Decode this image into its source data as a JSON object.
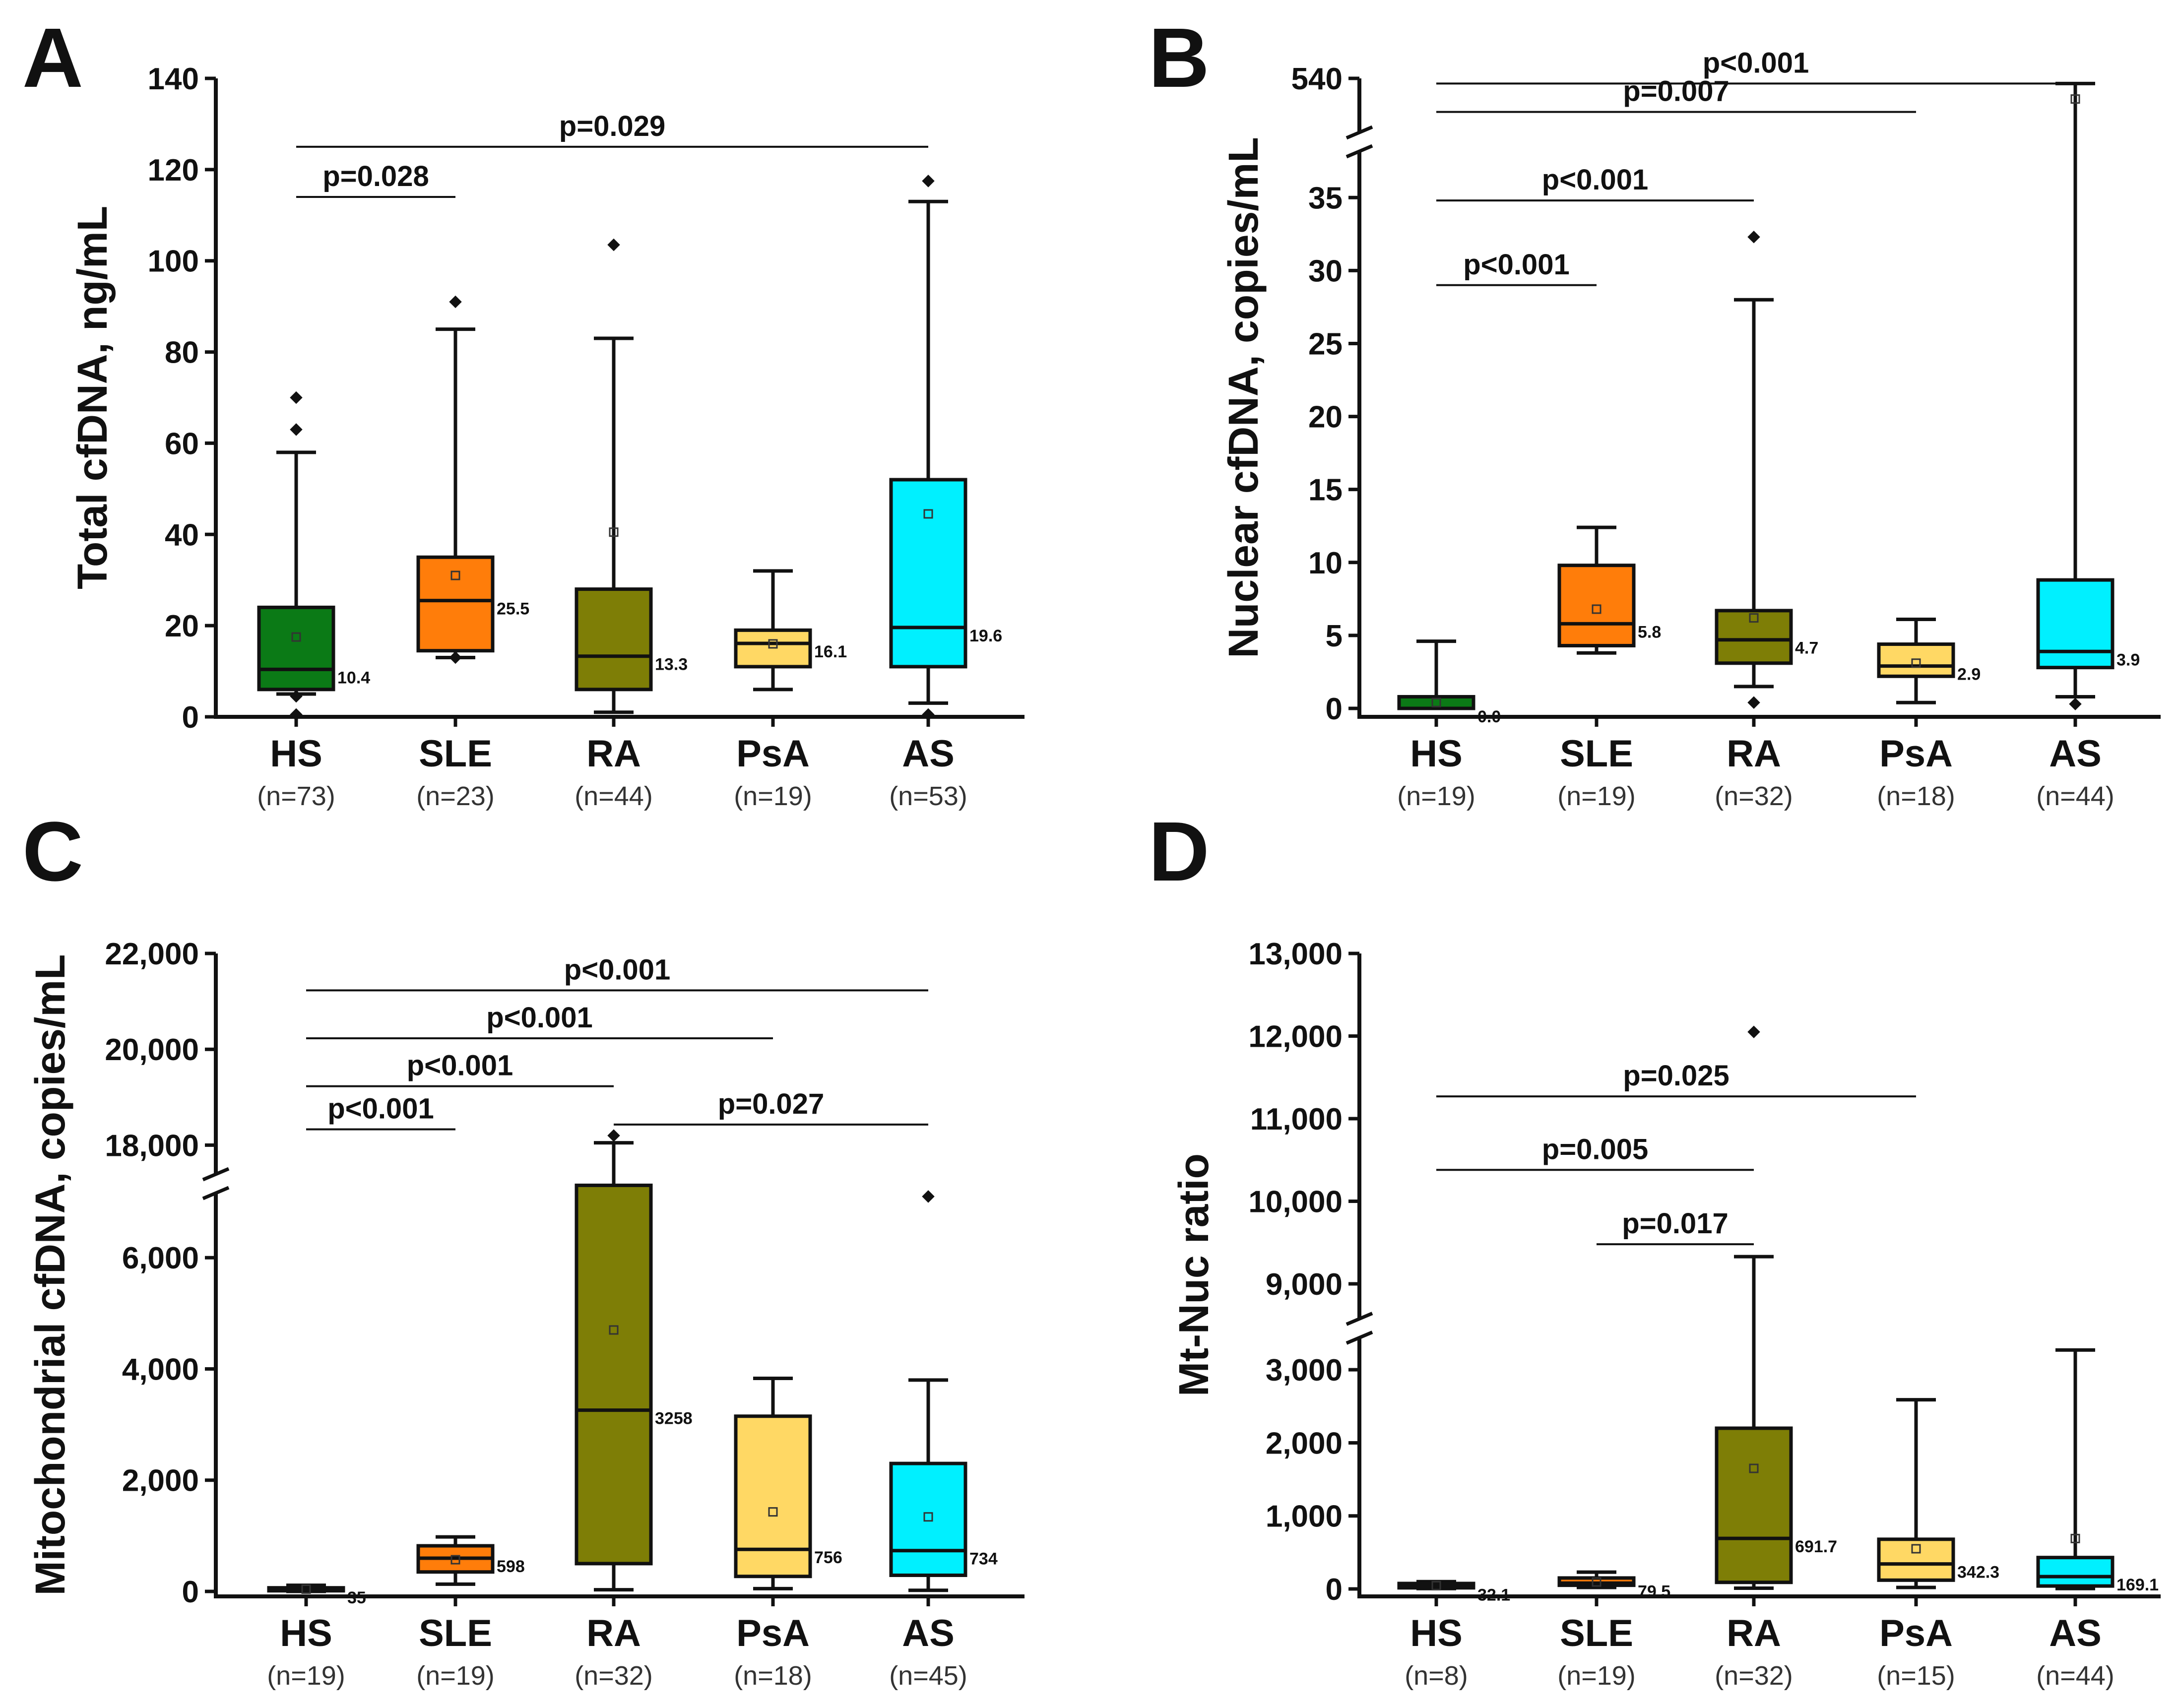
{
  "colors": {
    "HS": "#0b7a16",
    "SLE": "#ff7d0a",
    "RA": "#7e7e06",
    "PsA": "#ffd864",
    "AS": "#00f0ff"
  },
  "chart_data": [
    {
      "panel": "A",
      "type": "box",
      "ylabel": "Total cfDNA, ng/mL",
      "ylim": [
        0,
        140
      ],
      "yticks": [
        0,
        20,
        40,
        60,
        80,
        100,
        120,
        140
      ],
      "ytick_labels": [
        "0",
        "20",
        "40",
        "60",
        "80",
        "100",
        "120",
        "140"
      ],
      "categories": [
        "HS",
        "SLE",
        "RA",
        "PsA",
        "AS"
      ],
      "n_labels": [
        "(n=73)",
        "(n=23)",
        "(n=44)",
        "(n=19)",
        "(n=53)"
      ],
      "series": [
        {
          "name": "HS",
          "q1": 6,
          "median": 10.4,
          "q3": 24,
          "whisker_low": 5,
          "whisker_high": 58,
          "mean": 17.5,
          "outliers": [
            70,
            63,
            0.5,
            4.5
          ],
          "median_label": "10.4"
        },
        {
          "name": "SLE",
          "q1": 14.5,
          "median": 25.5,
          "q3": 35,
          "whisker_low": 13,
          "whisker_high": 85,
          "mean": 31,
          "outliers": [
            91,
            13
          ],
          "median_label": "25.5"
        },
        {
          "name": "RA",
          "q1": 6,
          "median": 13.3,
          "q3": 28,
          "whisker_low": 1,
          "whisker_high": 83,
          "mean": 40.5,
          "outliers": [
            103.5
          ],
          "median_label": "13.3"
        },
        {
          "name": "PsA",
          "q1": 11,
          "median": 16.1,
          "q3": 19,
          "whisker_low": 6,
          "whisker_high": 32,
          "mean": 16,
          "outliers": [],
          "median_label": "16.1"
        },
        {
          "name": "AS",
          "q1": 11,
          "median": 19.6,
          "q3": 52,
          "whisker_low": 3,
          "whisker_high": 113,
          "mean": 44.5,
          "outliers": [
            117.5,
            0.5
          ],
          "median_label": "19.6"
        }
      ],
      "brackets": [
        {
          "from": "HS",
          "to": "SLE",
          "y": 114,
          "label": "p=0.028"
        },
        {
          "from": "HS",
          "to": "AS",
          "y": 125,
          "label": "p=0.029"
        }
      ]
    },
    {
      "panel": "B",
      "type": "box",
      "ylabel": "Nuclear cfDNA, copies/mL",
      "ylim": [
        0,
        540
      ],
      "axis_break": [
        38,
        520
      ],
      "yticks": [
        0,
        5,
        10,
        15,
        20,
        25,
        30,
        35,
        540
      ],
      "ytick_labels": [
        "0",
        "5",
        "10",
        "15",
        "20",
        "25",
        "30",
        "35",
        "540"
      ],
      "categories": [
        "HS",
        "SLE",
        "RA",
        "PsA",
        "AS"
      ],
      "n_labels": [
        "(n=19)",
        "(n=19)",
        "(n=32)",
        "(n=18)",
        "(n=44)"
      ],
      "series": [
        {
          "name": "HS",
          "q1": 0,
          "median": 0.0,
          "q3": 0.8,
          "whisker_low": 0,
          "whisker_high": 4.6,
          "mean": 0.4,
          "outliers": [],
          "median_label": "0.0"
        },
        {
          "name": "SLE",
          "q1": 4.3,
          "median": 5.8,
          "q3": 9.8,
          "whisker_low": 3.8,
          "whisker_high": 12.4,
          "mean": 6.8,
          "outliers": [],
          "median_label": "5.8"
        },
        {
          "name": "RA",
          "q1": 3.1,
          "median": 4.7,
          "q3": 6.7,
          "whisker_low": 1.5,
          "whisker_high": 28,
          "mean": 6.2,
          "outliers": [
            32.3,
            0.4
          ],
          "median_label": "4.7"
        },
        {
          "name": "PsA",
          "q1": 2.2,
          "median": 2.9,
          "q3": 4.4,
          "whisker_low": 0.4,
          "whisker_high": 6.1,
          "mean": 3.1,
          "outliers": [],
          "median_label": "2.9"
        },
        {
          "name": "AS",
          "q1": 2.8,
          "median": 3.9,
          "q3": 8.8,
          "whisker_low": 0.8,
          "whisker_high": 538,
          "mean": 532,
          "outliers": [
            0.3
          ],
          "median_label": "3.9"
        }
      ],
      "brackets": [
        {
          "from": "HS",
          "to": "SLE",
          "y": 29,
          "label": "p<0.001"
        },
        {
          "from": "HS",
          "to": "RA",
          "y": 34.8,
          "label": "p<0.001"
        },
        {
          "from": "HS",
          "to": "PsA",
          "y": 527,
          "label": "p=0.007"
        },
        {
          "from": "HS",
          "to": "AS",
          "y": 538,
          "label": "p<0.001"
        }
      ]
    },
    {
      "panel": "C",
      "type": "box",
      "ylabel": "Mitochondrial cfDNA, copies/mL",
      "ylim": [
        0,
        22000
      ],
      "axis_break": [
        7500,
        17000
      ],
      "yticks": [
        0,
        2000,
        4000,
        6000,
        18000,
        20000,
        22000
      ],
      "ytick_labels": [
        "0",
        "2,000",
        "4,000",
        "6,000",
        "18,000",
        "20,000",
        "22,000"
      ],
      "categories": [
        "HS",
        "SLE",
        "RA",
        "PsA",
        "AS"
      ],
      "n_labels": [
        "(n=19)",
        "(n=19)",
        "(n=32)",
        "(n=18)",
        "(n=45)"
      ],
      "series": [
        {
          "name": "HS",
          "q1": 15,
          "median": 35,
          "q3": 65,
          "whisker_low": 0,
          "whisker_high": 110,
          "mean": 40,
          "outliers": [],
          "median_label": "35"
        },
        {
          "name": "SLE",
          "q1": 350,
          "median": 598,
          "q3": 820,
          "whisker_low": 130,
          "whisker_high": 980,
          "mean": 570,
          "outliers": [],
          "median_label": "598"
        },
        {
          "name": "RA",
          "q1": 500,
          "median": 3258,
          "q3": 7300,
          "whisker_low": 30,
          "whisker_high": 18050,
          "mean": 4700,
          "outliers": [
            18200
          ],
          "median_label": "3258"
        },
        {
          "name": "PsA",
          "q1": 270,
          "median": 756,
          "q3": 3150,
          "whisker_low": 50,
          "whisker_high": 3830,
          "mean": 1430,
          "outliers": [],
          "median_label": "756"
        },
        {
          "name": "AS",
          "q1": 290,
          "median": 734,
          "q3": 2300,
          "whisker_low": 20,
          "whisker_high": 3800,
          "mean": 1340,
          "outliers": [
            7100
          ],
          "median_label": "734"
        }
      ],
      "brackets": [
        {
          "from": "HS",
          "to": "SLE",
          "y": 18330,
          "label": "p<0.001"
        },
        {
          "from": "HS",
          "to": "RA",
          "y": 19230,
          "label": "p<0.001"
        },
        {
          "from": "HS",
          "to": "PsA",
          "y": 20230,
          "label": "p<0.001"
        },
        {
          "from": "HS",
          "to": "AS",
          "y": 21230,
          "label": "p<0.001"
        },
        {
          "from": "RA",
          "to": "AS",
          "y": 18430,
          "label": "p=0.027"
        }
      ]
    },
    {
      "panel": "D",
      "type": "box",
      "ylabel": "Mt-Nuc ratio",
      "ylim": [
        0,
        13000
      ],
      "axis_break": [
        3300,
        8700
      ],
      "yticks": [
        0,
        1000,
        2000,
        3000,
        9000,
        10000,
        11000,
        12000,
        13000
      ],
      "ytick_labels": [
        "0",
        "1,000",
        "2,000",
        "3,000",
        "9,000",
        "10,000",
        "11,000",
        "12,000",
        "13,000"
      ],
      "categories": [
        "HS",
        "SLE",
        "RA",
        "PsA",
        "AS"
      ],
      "n_labels": [
        "(n=8)",
        "(n=19)",
        "(n=32)",
        "(n=15)",
        "(n=44)"
      ],
      "series": [
        {
          "name": "HS",
          "q1": 15,
          "median": 32.1,
          "q3": 75,
          "whisker_low": 5,
          "whisker_high": 100,
          "mean": 45,
          "outliers": [],
          "median_label": "32.1"
        },
        {
          "name": "SLE",
          "q1": 50,
          "median": 79.5,
          "q3": 150,
          "whisker_low": 20,
          "whisker_high": 230,
          "mean": 95,
          "outliers": [],
          "median_label": "79.5"
        },
        {
          "name": "RA",
          "q1": 90,
          "median": 691.7,
          "q3": 2200,
          "whisker_low": 10,
          "whisker_high": 9330,
          "mean": 1650,
          "outliers": [
            12050
          ],
          "median_label": "691.7"
        },
        {
          "name": "PsA",
          "q1": 120,
          "median": 342.3,
          "q3": 680,
          "whisker_low": 20,
          "whisker_high": 2590,
          "mean": 550,
          "outliers": [],
          "median_label": "342.3"
        },
        {
          "name": "AS",
          "q1": 40,
          "median": 169.1,
          "q3": 430,
          "whisker_low": 5,
          "whisker_high": 3270,
          "mean": 690,
          "outliers": [],
          "median_label": "169.1"
        }
      ],
      "brackets": [
        {
          "from": "SLE",
          "to": "RA",
          "y": 9480,
          "label": "p=0.017"
        },
        {
          "from": "HS",
          "to": "RA",
          "y": 10380,
          "label": "p=0.005"
        },
        {
          "from": "HS",
          "to": "PsA",
          "y": 11270,
          "label": "p=0.025"
        }
      ]
    }
  ]
}
